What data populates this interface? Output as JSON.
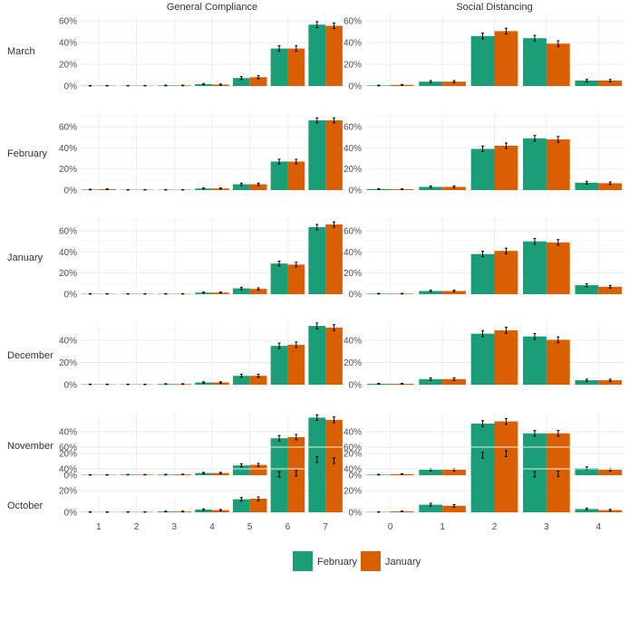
{
  "legend": {
    "items": [
      {
        "label": "February",
        "color": "#1b9e77"
      },
      {
        "label": "January",
        "color": "#d95f02"
      }
    ]
  },
  "chart_data": {
    "type": "bar",
    "subtype": "faceted-grouped-bar-with-error-bars",
    "columns": [
      "General Compliance",
      "Social Distancing"
    ],
    "rows": [
      "March",
      "February",
      "January",
      "December",
      "November",
      "October"
    ],
    "series": [
      {
        "name": "February",
        "color": "#1b9e77"
      },
      {
        "name": "January",
        "color": "#d95f02"
      }
    ],
    "y_axis": {
      "format": "percent",
      "min": 0,
      "grid": true
    },
    "panels": {
      "General Compliance": {
        "categories": [
          "1",
          "2",
          "3",
          "4",
          "5",
          "6",
          "7"
        ],
        "March": {
          "values": [
            [
              0.2,
              0.3
            ],
            [
              0.3,
              0.3
            ],
            [
              0.5,
              0.5
            ],
            [
              1.7,
              1.3
            ],
            [
              7.3,
              8.1
            ],
            [
              34.5,
              34.5
            ],
            [
              56.5,
              55.4
            ]
          ],
          "err": [
            [
              0.2,
              0.2
            ],
            [
              0.2,
              0.2
            ],
            [
              0.3,
              0.3
            ],
            [
              0.6,
              0.5
            ],
            [
              1.3,
              1.4
            ],
            [
              2.5,
              2.5
            ],
            [
              2.7,
              2.6
            ]
          ],
          "ylim": [
            0,
            62
          ],
          "yticks": [
            0,
            20,
            40,
            60
          ]
        },
        "February": {
          "values": [
            [
              0.5,
              0.8
            ],
            [
              0.3,
              0.3
            ],
            [
              0.3,
              0.3
            ],
            [
              1.5,
              1.5
            ],
            [
              5.5,
              5.5
            ],
            [
              27.0,
              27.0
            ],
            [
              66.0,
              66.0
            ]
          ],
          "err": [
            [
              0.3,
              0.4
            ],
            [
              0.2,
              0.2
            ],
            [
              0.2,
              0.2
            ],
            [
              0.5,
              0.5
            ],
            [
              1.1,
              1.1
            ],
            [
              2.2,
              2.2
            ],
            [
              2.4,
              2.4
            ]
          ],
          "ylim": [
            0,
            72
          ],
          "yticks": [
            0,
            20,
            40,
            60
          ]
        },
        "January": {
          "values": [
            [
              0.3,
              0.3
            ],
            [
              0.3,
              0.3
            ],
            [
              0.3,
              0.3
            ],
            [
              1.5,
              1.5
            ],
            [
              5.5,
              5.0
            ],
            [
              29.0,
              28.0
            ],
            [
              63.5,
              66.0
            ]
          ],
          "err": [
            [
              0.2,
              0.2
            ],
            [
              0.2,
              0.2
            ],
            [
              0.2,
              0.2
            ],
            [
              0.5,
              0.5
            ],
            [
              1.1,
              1.0
            ],
            [
              2.3,
              2.2
            ],
            [
              2.5,
              2.4
            ]
          ],
          "ylim": [
            0,
            72
          ],
          "yticks": [
            0,
            20,
            40,
            60
          ]
        },
        "December": {
          "values": [
            [
              0.3,
              0.3
            ],
            [
              0.3,
              0.3
            ],
            [
              0.6,
              0.6
            ],
            [
              2.0,
              2.0
            ],
            [
              8.0,
              8.0
            ],
            [
              35.0,
              36.0
            ],
            [
              53.0,
              51.5
            ]
          ],
          "err": [
            [
              0.2,
              0.2
            ],
            [
              0.2,
              0.2
            ],
            [
              0.3,
              0.3
            ],
            [
              0.6,
              0.6
            ],
            [
              1.3,
              1.3
            ],
            [
              2.5,
              2.5
            ],
            [
              2.6,
              2.6
            ]
          ],
          "ylim": [
            0,
            57
          ],
          "yticks": [
            0,
            20,
            40
          ]
        },
        "November": {
          "values": [
            [
              0.3,
              0.3
            ],
            [
              0.5,
              0.5
            ],
            [
              0.5,
              0.7
            ],
            [
              2.0,
              2.0
            ],
            [
              9.0,
              9.5
            ],
            [
              34.0,
              35.0
            ],
            [
              53.0,
              51.0
            ]
          ],
          "err": [
            [
              0.2,
              0.2
            ],
            [
              0.2,
              0.2
            ],
            [
              0.3,
              0.3
            ],
            [
              0.6,
              0.6
            ],
            [
              1.4,
              1.4
            ],
            [
              2.5,
              2.5
            ],
            [
              2.6,
              2.6
            ]
          ],
          "ylim": [
            0,
            57
          ],
          "yticks": [
            0,
            20,
            40
          ]
        },
        "October": {
          "values": [
            [
              0.2,
              0.2
            ],
            [
              0.3,
              0.3
            ],
            [
              0.7,
              0.7
            ],
            [
              2.5,
              2.0
            ],
            [
              12.0,
              12.5
            ],
            [
              35.0,
              36.0
            ],
            [
              48.5,
              47.5
            ]
          ],
          "err": [
            [
              0.2,
              0.2
            ],
            [
              0.2,
              0.2
            ],
            [
              0.4,
              0.4
            ],
            [
              0.7,
              0.6
            ],
            [
              1.6,
              1.7
            ],
            [
              2.5,
              2.5
            ],
            [
              2.6,
              2.6
            ]
          ],
          "ylim": [
            0,
            62
          ],
          "yticks": [
            0,
            20,
            40,
            60
          ]
        }
      },
      "Social Distancing": {
        "categories": [
          "0",
          "1",
          "2",
          "3",
          "4"
        ],
        "March": {
          "values": [
            [
              0.5,
              1.0
            ],
            [
              4.0,
              4.0
            ],
            [
              46.0,
              50.5
            ],
            [
              44.0,
              39.0
            ],
            [
              5.0,
              5.0
            ]
          ],
          "err": [
            [
              0.3,
              0.4
            ],
            [
              1.0,
              1.0
            ],
            [
              2.7,
              2.7
            ],
            [
              2.6,
              2.6
            ],
            [
              1.1,
              1.1
            ]
          ],
          "ylim": [
            0,
            62
          ],
          "yticks": [
            0,
            20,
            40,
            60
          ]
        },
        "February": {
          "values": [
            [
              1.0,
              0.8
            ],
            [
              3.0,
              3.0
            ],
            [
              39.0,
              42.0
            ],
            [
              49.0,
              48.0
            ],
            [
              7.0,
              6.5
            ]
          ],
          "err": [
            [
              0.4,
              0.4
            ],
            [
              0.8,
              0.8
            ],
            [
              2.6,
              2.6
            ],
            [
              2.7,
              2.7
            ],
            [
              1.3,
              1.2
            ]
          ],
          "ylim": [
            0,
            72
          ],
          "yticks": [
            0,
            20,
            40,
            60
          ]
        },
        "January": {
          "values": [
            [
              0.5,
              0.5
            ],
            [
              3.0,
              3.0
            ],
            [
              38.0,
              41.0
            ],
            [
              50.0,
              49.0
            ],
            [
              8.5,
              7.0
            ]
          ],
          "err": [
            [
              0.3,
              0.3
            ],
            [
              0.8,
              0.8
            ],
            [
              2.6,
              2.6
            ],
            [
              2.7,
              2.7
            ],
            [
              1.4,
              1.3
            ]
          ],
          "ylim": [
            0,
            72
          ],
          "yticks": [
            0,
            20,
            40,
            60
          ]
        },
        "December": {
          "values": [
            [
              0.8,
              0.8
            ],
            [
              5.0,
              5.0
            ],
            [
              46.0,
              49.0
            ],
            [
              43.5,
              40.5
            ],
            [
              4.0,
              4.0
            ]
          ],
          "err": [
            [
              0.4,
              0.4
            ],
            [
              1.1,
              1.1
            ],
            [
              2.7,
              2.7
            ],
            [
              2.6,
              2.6
            ],
            [
              1.0,
              1.0
            ]
          ],
          "ylim": [
            0,
            57
          ],
          "yticks": [
            0,
            20,
            40
          ]
        },
        "November": {
          "values": [
            [
              0.5,
              1.0
            ],
            [
              5.0,
              5.0
            ],
            [
              47.5,
              49.5
            ],
            [
              38.5,
              38.5
            ],
            [
              6.5,
              5.0
            ]
          ],
          "err": [
            [
              0.3,
              0.4
            ],
            [
              1.1,
              1.1
            ],
            [
              2.7,
              2.7
            ],
            [
              2.6,
              2.6
            ],
            [
              1.2,
              1.1
            ]
          ],
          "ylim": [
            0,
            57
          ],
          "yticks": [
            0,
            20,
            40
          ]
        },
        "October": {
          "values": [
            [
              0.3,
              0.8
            ],
            [
              7.0,
              6.0
            ],
            [
              52.5,
              54.0
            ],
            [
              35.0,
              35.5
            ],
            [
              3.0,
              2.0
            ]
          ],
          "err": [
            [
              0.2,
              0.4
            ],
            [
              1.3,
              1.2
            ],
            [
              2.7,
              2.7
            ],
            [
              2.5,
              2.5
            ],
            [
              0.9,
              0.8
            ]
          ],
          "ylim": [
            0,
            62
          ],
          "yticks": [
            0,
            20,
            40,
            60
          ]
        }
      }
    }
  }
}
